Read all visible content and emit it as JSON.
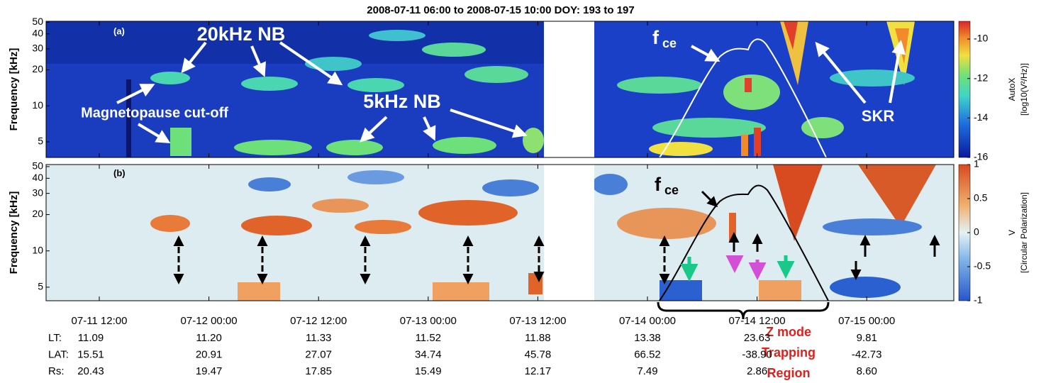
{
  "title": "2008-07-11 06:00 to 2008-07-15 10:00 DOY: 193 to 197",
  "panels": [
    {
      "label": "(a)",
      "ylabel": "Frequency [kHz]",
      "ylim": [
        3.7,
        51
      ],
      "log": true,
      "yticks": [
        5,
        10,
        20,
        30,
        40,
        50
      ],
      "colorbar": {
        "title": "AutoX",
        "unit": "[log10(V²/Hz)]",
        "clim": [
          -16,
          -9.1
        ],
        "ticks": [
          -10,
          -12,
          -14,
          -16
        ]
      },
      "annotations": {
        "nb20": "20kHz NB",
        "mp": "Magnetopause cut-off",
        "nb5": "5kHz NB",
        "fce": {
          "main": "f",
          "sub": "ce"
        },
        "skr": "SKR"
      }
    },
    {
      "label": "(b)",
      "ylabel": "Frequency [kHz]",
      "ylim": [
        3.86,
        52
      ],
      "log": true,
      "yticks": [
        5,
        10,
        20,
        30,
        40,
        50
      ],
      "colorbar": {
        "title": "V",
        "unit": "[Circular Polarization]",
        "clim": [
          -1,
          1
        ],
        "ticks": [
          1,
          0.5,
          0,
          -0.5,
          -1
        ]
      },
      "annotations": {
        "fce": {
          "main": "f",
          "sub": "ce"
        }
      }
    }
  ],
  "xticks": [
    "07-11 12:00",
    "07-12 00:00",
    "07-12 12:00",
    "07-13 00:00",
    "07-13 12:00",
    "07-14 00:00",
    "07-14 12:00",
    "07-15 00:00"
  ],
  "ephemeris": [
    {
      "label": "LT:",
      "values": [
        "11.09",
        "11.20",
        "11.33",
        "11.52",
        "11.88",
        "13.38",
        "23.63",
        "9.81"
      ]
    },
    {
      "label": "LAT:",
      "values": [
        "15.51",
        "20.91",
        "27.07",
        "34.74",
        "45.78",
        "66.52",
        "-38.90",
        "-42.73"
      ]
    },
    {
      "label": "Rs:",
      "values": [
        "20.43",
        "19.47",
        "17.85",
        "15.49",
        "12.17",
        "7.49",
        "2.86",
        "8.60"
      ]
    }
  ],
  "region": [
    "Z mode",
    "Trapping",
    "Region"
  ]
}
